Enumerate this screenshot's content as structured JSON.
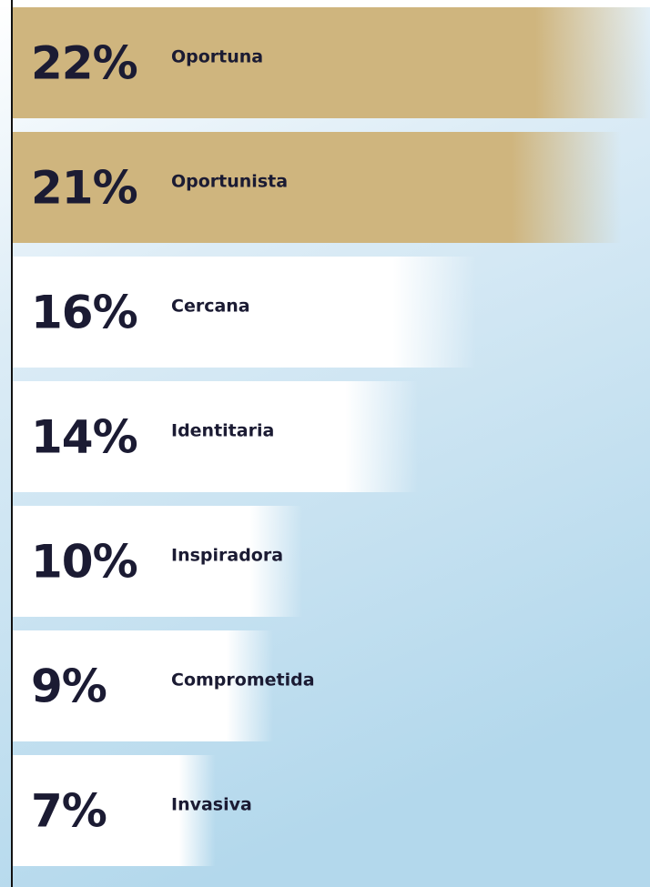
{
  "chart_data": {
    "type": "bar",
    "orientation": "horizontal",
    "categories": [
      "Oportuna",
      "Oportunista",
      "Cercana",
      "Identitaria",
      "Inspiradora",
      "Comprometida",
      "Invasiva"
    ],
    "values": [
      22,
      21,
      16,
      14,
      10,
      9,
      7
    ],
    "value_labels": [
      "22%",
      "21%",
      "16%",
      "14%",
      "10%",
      "9%",
      "7%"
    ],
    "colors": [
      "#cfb57e",
      "#cfb57e",
      "#ffffff",
      "#ffffff",
      "#ffffff",
      "#ffffff",
      "#ffffff"
    ]
  }
}
